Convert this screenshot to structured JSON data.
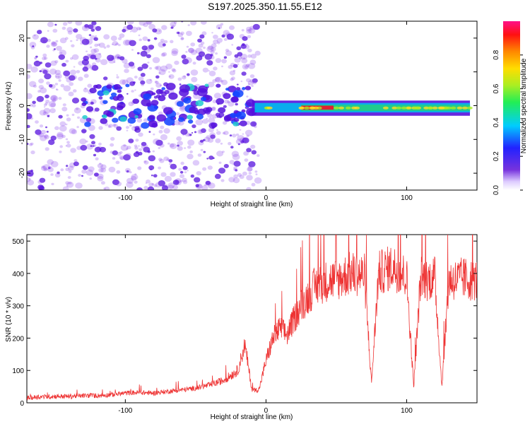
{
  "title": "S197.2025.350.11.55.E12",
  "colors": {
    "signal": "#ee3333",
    "speckle": "#8844ee",
    "band_low": "#5511dd",
    "band_mid": "#22cc88",
    "band_high": "#dd2233"
  },
  "chart_data": [
    {
      "type": "heatmap",
      "title": "S197.2025.350.11.55.E12",
      "xlabel": "Height of straight line (km)",
      "ylabel": "Frequency (Hz)",
      "xlim": [
        -170,
        150
      ],
      "ylim": [
        -25,
        25
      ],
      "xticks": [
        -100,
        0,
        100
      ],
      "xtick_labels": [
        "-100",
        "0",
        "100"
      ],
      "yticks": [
        -20,
        -10,
        0,
        10,
        20
      ],
      "ytick_labels": [
        "-20",
        "-10",
        "0",
        "10",
        "20"
      ],
      "colorbar": {
        "label": "Normalized spectral amplitude",
        "range": [
          0.0,
          1.0
        ],
        "ticks": [
          0.0,
          0.2,
          0.4,
          0.6,
          0.8
        ],
        "tick_labels": [
          "0.0",
          "0.2",
          "0.4",
          "0.6",
          "0.8"
        ]
      },
      "description_bands": [
        {
          "x_range": [
            -170,
            -10
          ],
          "content": "scattered low-amplitude speckle across all frequencies"
        },
        {
          "x_range": [
            -10,
            25
          ],
          "content": "narrow band near 0 Hz, amplitude ~0.3"
        },
        {
          "x_range": [
            25,
            50
          ],
          "content": "strong narrow band near -1 Hz, amplitude ~0.9"
        },
        {
          "x_range": [
            50,
            145
          ],
          "content": "narrow band near -1 Hz, amplitude ~0.4-0.5"
        }
      ]
    },
    {
      "type": "line",
      "title": "",
      "xlabel": "Height of straight line (km)",
      "ylabel": "SNR (10 * v/v)",
      "xlim": [
        -170,
        150
      ],
      "ylim": [
        0,
        520
      ],
      "xticks": [
        -100,
        0,
        100
      ],
      "xtick_labels": [
        "-100",
        "0",
        "100"
      ],
      "yticks": [
        0,
        100,
        200,
        300,
        400,
        500
      ],
      "ytick_labels": [
        "0",
        "100",
        "200",
        "300",
        "400",
        "500"
      ],
      "series": [
        {
          "name": "SNR",
          "x": [
            -170,
            -160,
            -150,
            -140,
            -130,
            -120,
            -110,
            -100,
            -90,
            -80,
            -70,
            -60,
            -50,
            -40,
            -30,
            -20,
            -15,
            -10,
            -5,
            0,
            5,
            10,
            15,
            20,
            25,
            30,
            35,
            40,
            45,
            50,
            60,
            70,
            75,
            80,
            90,
            100,
            105,
            110,
            115,
            120,
            125,
            130,
            135,
            140,
            145,
            150
          ],
          "values": [
            15,
            18,
            20,
            20,
            22,
            22,
            25,
            30,
            32,
            30,
            35,
            40,
            45,
            55,
            70,
            100,
            180,
            40,
            40,
            130,
            200,
            230,
            210,
            260,
            300,
            330,
            360,
            370,
            380,
            380,
            400,
            395,
            60,
            400,
            420,
            390,
            50,
            390,
            380,
            390,
            50,
            380,
            380,
            385,
            380,
            380
          ]
        }
      ]
    }
  ]
}
